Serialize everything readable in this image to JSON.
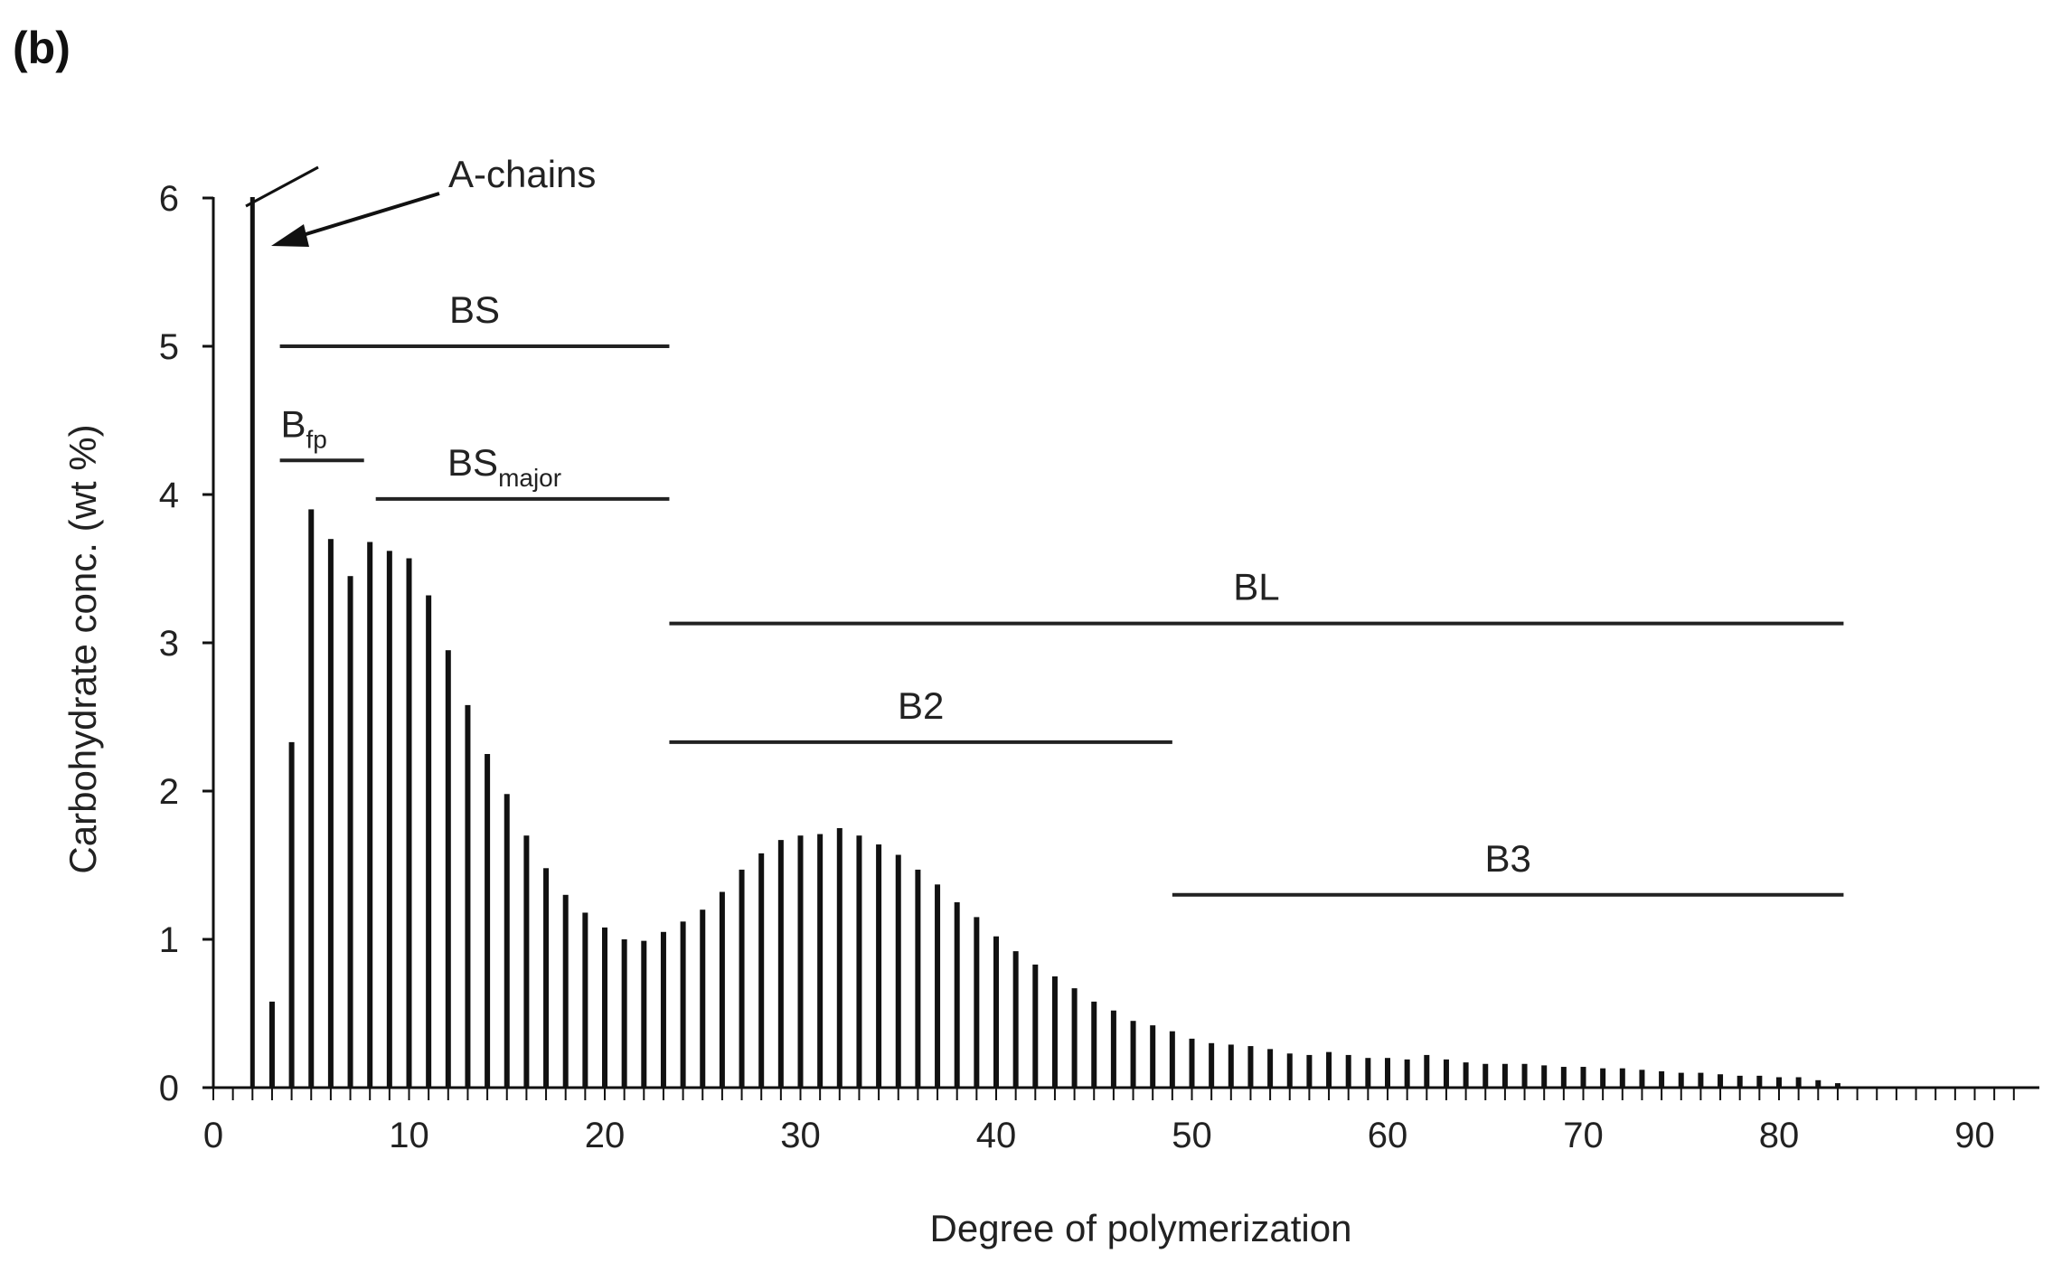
{
  "panel_label": "(b)",
  "chart_data": {
    "type": "bar",
    "title": "",
    "xlabel": "Degree of polymerization",
    "ylabel": "Carbohydrate conc. (wt %)",
    "xlim": [
      0,
      92
    ],
    "ylim": [
      0,
      6
    ],
    "xticks": [
      0,
      10,
      20,
      30,
      40,
      50,
      60,
      70,
      80,
      90
    ],
    "yticks": [
      0,
      1,
      2,
      3,
      4,
      5,
      6
    ],
    "y_axis_break": true,
    "x": [
      2,
      3,
      4,
      5,
      6,
      7,
      8,
      9,
      10,
      11,
      12,
      13,
      14,
      15,
      16,
      17,
      18,
      19,
      20,
      21,
      22,
      23,
      24,
      25,
      26,
      27,
      28,
      29,
      30,
      31,
      32,
      33,
      34,
      35,
      36,
      37,
      38,
      39,
      40,
      41,
      42,
      43,
      44,
      45,
      46,
      47,
      48,
      49,
      50,
      51,
      52,
      53,
      54,
      55,
      56,
      57,
      58,
      59,
      60,
      61,
      62,
      63,
      64,
      65,
      66,
      67,
      68,
      69,
      70,
      71,
      72,
      73,
      74,
      75,
      76,
      77,
      78,
      79,
      80,
      81,
      82,
      83
    ],
    "values": [
      6.0,
      0.58,
      2.33,
      3.9,
      3.7,
      3.45,
      3.68,
      3.62,
      3.57,
      3.32,
      2.95,
      2.58,
      2.25,
      1.98,
      1.7,
      1.48,
      1.3,
      1.18,
      1.08,
      1.0,
      0.99,
      1.05,
      1.12,
      1.2,
      1.32,
      1.47,
      1.58,
      1.67,
      1.7,
      1.71,
      1.75,
      1.7,
      1.64,
      1.57,
      1.47,
      1.37,
      1.25,
      1.15,
      1.02,
      0.92,
      0.83,
      0.75,
      0.67,
      0.58,
      0.52,
      0.45,
      0.42,
      0.38,
      0.33,
      0.3,
      0.29,
      0.28,
      0.26,
      0.23,
      0.22,
      0.24,
      0.22,
      0.2,
      0.2,
      0.19,
      0.22,
      0.19,
      0.17,
      0.16,
      0.16,
      0.16,
      0.15,
      0.14,
      0.14,
      0.13,
      0.13,
      0.12,
      0.11,
      0.1,
      0.1,
      0.09,
      0.08,
      0.08,
      0.07,
      0.07,
      0.05,
      0.03
    ],
    "ranges": [
      {
        "label": "BS",
        "sub": "",
        "x_start": 3.4,
        "x_end": 23.3,
        "y": 5.0
      },
      {
        "label": "B",
        "sub": "fp",
        "x_start": 3.4,
        "x_end": 7.7,
        "y": 4.23
      },
      {
        "label": "BS",
        "sub": "major",
        "x_start": 8.3,
        "x_end": 23.3,
        "y": 3.97
      },
      {
        "label": "BL",
        "sub": "",
        "x_start": 23.3,
        "x_end": 83.3,
        "y": 3.13
      },
      {
        "label": "B2",
        "sub": "",
        "x_start": 23.3,
        "x_end": 49.0,
        "y": 2.33
      },
      {
        "label": "B3",
        "sub": "",
        "x_start": 49.0,
        "x_end": 83.3,
        "y": 1.3
      }
    ],
    "annotations": [
      {
        "text": "A-chains",
        "points_to_x": 2,
        "points_to_y": 5.7
      }
    ]
  }
}
